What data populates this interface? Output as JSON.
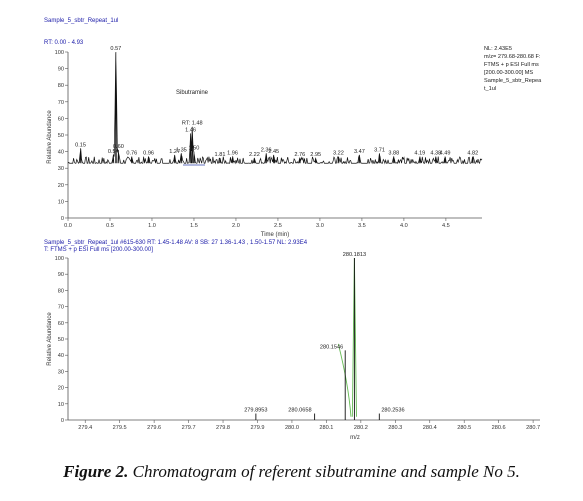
{
  "caption": {
    "label": "Figure 2.",
    "text": "Chromatogram of referent sibutramine and sample No 5."
  },
  "colors": {
    "trace": "#111111",
    "header_text": "#1a1aa8",
    "axis": "#555555",
    "fit_line": "#66bb55"
  },
  "chart_data": [
    {
      "type": "line",
      "header": [
        "Sample_5_sbtr_Repeat_1ul",
        "RT: 0.00 - 4.93"
      ],
      "info": [
        "NL: 2.43E5",
        "m/z= 279.68-280.68 F:",
        "FTMS + p ESI Full ms",
        "[200.00-300.00]  MS",
        "Sample_5_sbtr_Repea",
        "t_1ul"
      ],
      "annotation": "Sibutramine",
      "xlabel": "Time (min)",
      "ylabel": "Relative Abundance",
      "xlim": [
        0,
        4.93
      ],
      "ylim": [
        0,
        100
      ],
      "xticks": [
        "0.0",
        "0.5",
        "1.0",
        "1.5",
        "2.0",
        "2.5",
        "3.0",
        "3.5",
        "4.0",
        "4.5"
      ],
      "xtick_values": [
        0,
        0.5,
        1.0,
        1.5,
        2.0,
        2.5,
        3.0,
        3.5,
        4.0,
        4.5
      ],
      "yticks": [
        "0",
        "10",
        "20",
        "30",
        "40",
        "50",
        "60",
        "70",
        "80",
        "90",
        "100"
      ],
      "baseline": 33,
      "noise_amplitude": 4,
      "peaks": [
        {
          "x": 0.15,
          "y": 42,
          "label": "0.15"
        },
        {
          "x": 0.54,
          "y": 38,
          "label": "0.54"
        },
        {
          "x": 0.57,
          "y": 100,
          "label": "0.57"
        },
        {
          "x": 0.6,
          "y": 41,
          "label": "0.60"
        },
        {
          "x": 0.76,
          "y": 37,
          "label": "0.76"
        },
        {
          "x": 0.96,
          "y": 37,
          "label": "0.96"
        },
        {
          "x": 1.27,
          "y": 38,
          "label": "1.27"
        },
        {
          "x": 1.35,
          "y": 39,
          "label": "1.35"
        },
        {
          "x": 1.46,
          "y": 51,
          "label": "1.46"
        },
        {
          "x": 1.48,
          "y": 55,
          "label": "RT: 1.48"
        },
        {
          "x": 1.5,
          "y": 40,
          "label": "1.50"
        },
        {
          "x": 1.81,
          "y": 36,
          "label": "1.81"
        },
        {
          "x": 1.96,
          "y": 37,
          "label": "1.96"
        },
        {
          "x": 2.22,
          "y": 36,
          "label": "2.22"
        },
        {
          "x": 2.36,
          "y": 39,
          "label": "2.36"
        },
        {
          "x": 2.45,
          "y": 38,
          "label": "2.45"
        },
        {
          "x": 2.76,
          "y": 36,
          "label": "2.76"
        },
        {
          "x": 2.95,
          "y": 36,
          "label": "2.95"
        },
        {
          "x": 3.22,
          "y": 37,
          "label": "3.22"
        },
        {
          "x": 3.47,
          "y": 38,
          "label": "3.47"
        },
        {
          "x": 3.71,
          "y": 39,
          "label": "3.71"
        },
        {
          "x": 3.88,
          "y": 37,
          "label": "3.88"
        },
        {
          "x": 4.19,
          "y": 37,
          "label": "4.19"
        },
        {
          "x": 4.38,
          "y": 37,
          "label": "4.38"
        },
        {
          "x": 4.49,
          "y": 37,
          "label": "4.49"
        },
        {
          "x": 4.82,
          "y": 37,
          "label": "4.82"
        }
      ]
    },
    {
      "type": "bar",
      "header": [
        "Sample_5_sbtr_Repeat_1ul #615-630  RT: 1.45-1.48  AV: 8  SB: 27  1.36-1.43 , 1.50-1.57  NL: 2.93E4",
        "T: FTMS + p ESI Full ms [200.00-300.00]"
      ],
      "xlabel": "m/z",
      "ylabel": "Relative Abundance",
      "xlim": [
        279.35,
        280.72
      ],
      "ylim": [
        0,
        100
      ],
      "xticks": [
        "279.4",
        "279.5",
        "279.6",
        "279.7",
        "279.8",
        "279.9",
        "280.0",
        "280.1",
        "280.2",
        "280.3",
        "280.4",
        "280.5",
        "280.6",
        "280.7"
      ],
      "xtick_values": [
        279.4,
        279.5,
        279.6,
        279.7,
        279.8,
        279.9,
        280.0,
        280.1,
        280.2,
        280.3,
        280.4,
        280.5,
        280.6,
        280.7
      ],
      "yticks": [
        "0",
        "10",
        "20",
        "30",
        "40",
        "50",
        "60",
        "70",
        "80",
        "90",
        "100"
      ],
      "peaks": [
        {
          "x": 279.8953,
          "y": 4,
          "label": "279.8953"
        },
        {
          "x": 280.0658,
          "y": 4,
          "label": "280.0658"
        },
        {
          "x": 280.1546,
          "y": 43,
          "label": "280.1546"
        },
        {
          "x": 280.1813,
          "y": 100,
          "label": "280.1813"
        },
        {
          "x": 280.2536,
          "y": 4,
          "label": "280.2536"
        }
      ]
    }
  ]
}
